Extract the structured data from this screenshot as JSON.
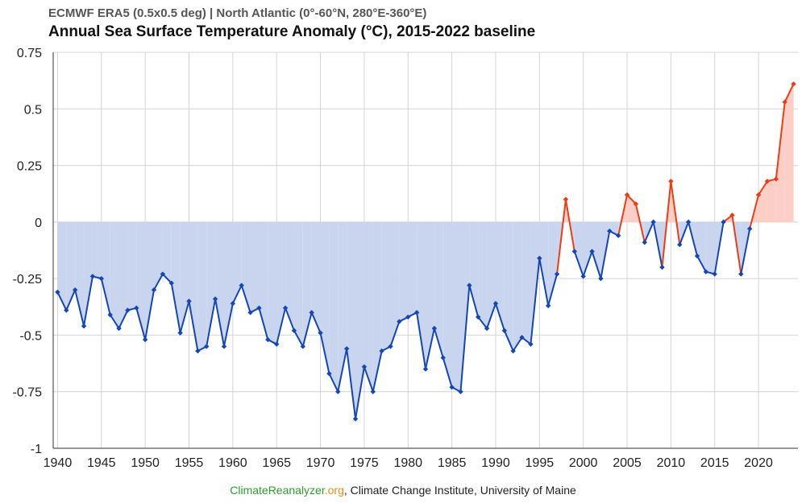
{
  "header": {
    "subtitle": "ECMWF ERA5 (0.5x0.5 deg) | North Atlantic (0°-60°N, 280°E-360°E)",
    "title": "Annual Sea Surface Temperature Anomaly (°C), 2015-2022 baseline"
  },
  "footer": {
    "site_part1": "ClimateReanalyzer",
    "site_part2": ".org",
    "rest": ", Climate Change Institute, University of Maine"
  },
  "colors": {
    "negative_line": "#1446b4",
    "negative_fill": "#c9d5ef",
    "positive_line": "#ee3c14",
    "positive_fill": "#fbcfc6",
    "grid": "#d4d4d4"
  },
  "chart_data": {
    "type": "area",
    "title": "Annual Sea Surface Temperature Anomaly (°C), 2015-2022 baseline",
    "xlabel": "",
    "ylabel": "",
    "xlim": [
      1939.5,
      2024.5
    ],
    "ylim": [
      -1,
      0.75
    ],
    "grid": true,
    "x_ticks": [
      1940,
      1945,
      1950,
      1955,
      1960,
      1965,
      1970,
      1975,
      1980,
      1985,
      1990,
      1995,
      2000,
      2005,
      2010,
      2015,
      2020
    ],
    "y_ticks": [
      0.75,
      0.5,
      0.25,
      0,
      -0.25,
      -0.5,
      -0.75,
      -1
    ],
    "y_tick_labels": [
      "0.75",
      "0.5",
      "0.25",
      "0",
      "-0.25",
      "-0.5",
      "-0.75",
      "-1"
    ],
    "x": [
      1940,
      1941,
      1942,
      1943,
      1944,
      1945,
      1946,
      1947,
      1948,
      1949,
      1950,
      1951,
      1952,
      1953,
      1954,
      1955,
      1956,
      1957,
      1958,
      1959,
      1960,
      1961,
      1962,
      1963,
      1964,
      1965,
      1966,
      1967,
      1968,
      1969,
      1970,
      1971,
      1972,
      1973,
      1974,
      1975,
      1976,
      1977,
      1978,
      1979,
      1980,
      1981,
      1982,
      1983,
      1984,
      1985,
      1986,
      1987,
      1988,
      1989,
      1990,
      1991,
      1992,
      1993,
      1994,
      1995,
      1996,
      1997,
      1998,
      1999,
      2000,
      2001,
      2002,
      2003,
      2004,
      2005,
      2006,
      2007,
      2008,
      2009,
      2010,
      2011,
      2012,
      2013,
      2014,
      2015,
      2016,
      2017,
      2018,
      2019,
      2020,
      2021,
      2022,
      2023,
      2024
    ],
    "y": [
      -0.31,
      -0.39,
      -0.3,
      -0.46,
      -0.24,
      -0.25,
      -0.41,
      -0.47,
      -0.39,
      -0.38,
      -0.52,
      -0.3,
      -0.23,
      -0.27,
      -0.49,
      -0.35,
      -0.57,
      -0.55,
      -0.34,
      -0.55,
      -0.36,
      -0.28,
      -0.4,
      -0.38,
      -0.52,
      -0.54,
      -0.38,
      -0.48,
      -0.55,
      -0.4,
      -0.49,
      -0.67,
      -0.75,
      -0.56,
      -0.87,
      -0.64,
      -0.75,
      -0.57,
      -0.55,
      -0.44,
      -0.42,
      -0.4,
      -0.65,
      -0.47,
      -0.6,
      -0.73,
      -0.75,
      -0.28,
      -0.42,
      -0.47,
      -0.36,
      -0.48,
      -0.57,
      -0.51,
      -0.54,
      -0.16,
      -0.37,
      -0.23,
      0.1,
      -0.13,
      -0.24,
      -0.13,
      -0.25,
      -0.04,
      -0.06,
      0.12,
      0.08,
      -0.09,
      0.0,
      -0.2,
      0.18,
      -0.1,
      0.0,
      -0.15,
      -0.22,
      -0.23,
      0.0,
      0.03,
      -0.23,
      -0.03,
      0.12,
      0.18,
      0.19,
      0.53,
      0.61
    ]
  }
}
